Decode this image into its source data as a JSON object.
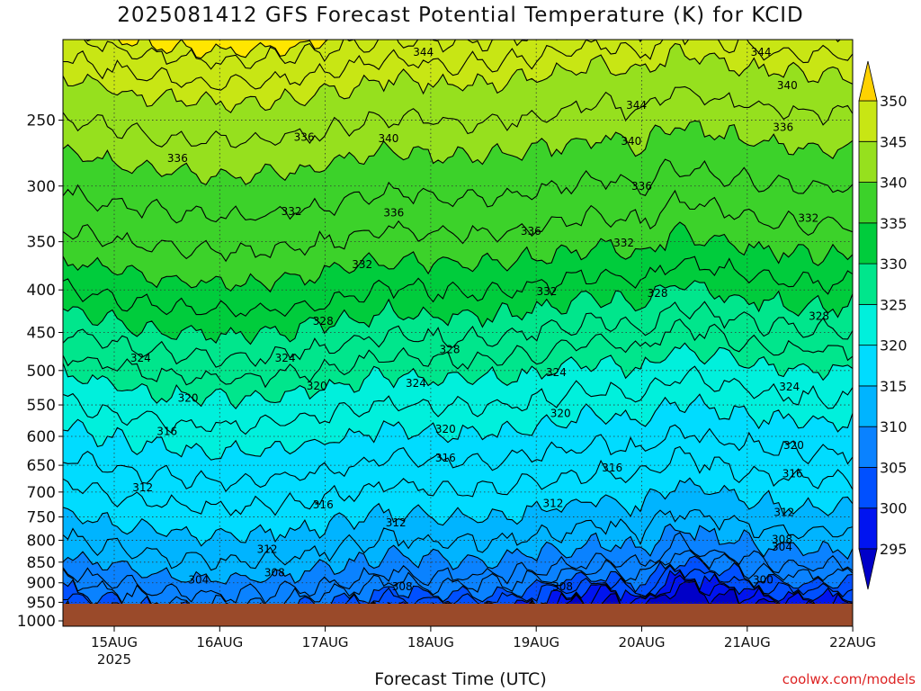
{
  "title": "2025081412 GFS Forecast Potential Temperature (K) for KCID",
  "xlabel": "Forecast Time (UTC)",
  "credit": "coolwx.com/models",
  "colors": {
    "ground": "#9a4a2a",
    "bands": [
      "#0000c8",
      "#0014f0",
      "#0050ff",
      "#0a82ff",
      "#00b4ff",
      "#00dcff",
      "#00f0dc",
      "#00e68c",
      "#00cc3c",
      "#3cd22a",
      "#96e01e",
      "#c8e614",
      "#ffe600",
      "#ffd200"
    ]
  },
  "chart_data": {
    "type": "heatmap",
    "title": "2025081412 GFS Forecast Potential Temperature (K) for KCID",
    "xlabel": "Forecast Time (UTC)",
    "ylabel": "",
    "x_ticks": [
      "15AUG",
      "16AUG",
      "17AUG",
      "18AUG",
      "19AUG",
      "20AUG",
      "21AUG",
      "22AUG"
    ],
    "x_year_label": "2025",
    "y_ticks": [
      250,
      300,
      350,
      400,
      450,
      500,
      550,
      600,
      650,
      700,
      750,
      800,
      850,
      900,
      950,
      1000
    ],
    "y_range": [
      200,
      1015
    ],
    "y_reversed": true,
    "colorbar_levels": [
      295,
      300,
      305,
      310,
      315,
      320,
      325,
      330,
      335,
      340,
      345,
      350
    ],
    "contour_interval": 2,
    "contour_labels": [
      {
        "value": 344,
        "t": 2.93,
        "p": 207
      },
      {
        "value": 344,
        "t": 6.13,
        "p": 207
      },
      {
        "value": 340,
        "t": 6.38,
        "p": 227
      },
      {
        "value": 344,
        "t": 4.95,
        "p": 240
      },
      {
        "value": 340,
        "t": 4.9,
        "p": 265
      },
      {
        "value": 340,
        "t": 2.6,
        "p": 263
      },
      {
        "value": 336,
        "t": 0.6,
        "p": 278
      },
      {
        "value": 336,
        "t": 1.8,
        "p": 262
      },
      {
        "value": 336,
        "t": 6.34,
        "p": 255
      },
      {
        "value": 336,
        "t": 5.0,
        "p": 300
      },
      {
        "value": 336,
        "t": 2.65,
        "p": 323
      },
      {
        "value": 336,
        "t": 3.95,
        "p": 340
      },
      {
        "value": 332,
        "t": 1.68,
        "p": 322
      },
      {
        "value": 332,
        "t": 6.58,
        "p": 328
      },
      {
        "value": 332,
        "t": 4.83,
        "p": 351
      },
      {
        "value": 332,
        "t": 2.35,
        "p": 373
      },
      {
        "value": 332,
        "t": 4.1,
        "p": 402
      },
      {
        "value": 328,
        "t": 5.15,
        "p": 404
      },
      {
        "value": 328,
        "t": 1.98,
        "p": 436
      },
      {
        "value": 328,
        "t": 6.68,
        "p": 430
      },
      {
        "value": 328,
        "t": 3.18,
        "p": 472
      },
      {
        "value": 324,
        "t": 0.25,
        "p": 483
      },
      {
        "value": 324,
        "t": 1.62,
        "p": 483
      },
      {
        "value": 324,
        "t": 4.19,
        "p": 503
      },
      {
        "value": 324,
        "t": 2.86,
        "p": 518
      },
      {
        "value": 324,
        "t": 6.4,
        "p": 523
      },
      {
        "value": 320,
        "t": 0.7,
        "p": 540
      },
      {
        "value": 320,
        "t": 1.92,
        "p": 522
      },
      {
        "value": 320,
        "t": 4.23,
        "p": 563
      },
      {
        "value": 320,
        "t": 3.14,
        "p": 588
      },
      {
        "value": 320,
        "t": 6.44,
        "p": 615
      },
      {
        "value": 316,
        "t": 0.5,
        "p": 592
      },
      {
        "value": 316,
        "t": 3.14,
        "p": 637
      },
      {
        "value": 316,
        "t": 4.72,
        "p": 655
      },
      {
        "value": 316,
        "t": 6.43,
        "p": 665
      },
      {
        "value": 312,
        "t": 0.27,
        "p": 692
      },
      {
        "value": 316,
        "t": 1.98,
        "p": 725
      },
      {
        "value": 312,
        "t": 4.16,
        "p": 722
      },
      {
        "value": 312,
        "t": 2.67,
        "p": 762
      },
      {
        "value": 312,
        "t": 6.35,
        "p": 741
      },
      {
        "value": 312,
        "t": 1.45,
        "p": 820
      },
      {
        "value": 308,
        "t": 6.33,
        "p": 798
      },
      {
        "value": 304,
        "t": 6.33,
        "p": 815
      },
      {
        "value": 304,
        "t": 0.8,
        "p": 893
      },
      {
        "value": 308,
        "t": 1.52,
        "p": 875
      },
      {
        "value": 308,
        "t": 2.73,
        "p": 910
      },
      {
        "value": 308,
        "t": 4.25,
        "p": 910
      },
      {
        "value": 300,
        "t": 6.15,
        "p": 893
      }
    ]
  }
}
